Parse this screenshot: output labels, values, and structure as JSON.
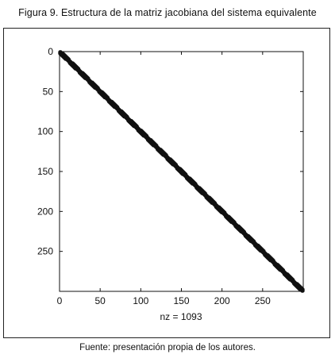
{
  "figure_title": "Figura 9. Estructura de la matriz jacobiana del sistema equivalente",
  "source_note": "Fuente: presentación propia de los autores.",
  "chart_data": {
    "type": "scatter",
    "subtype": "sparsity-pattern",
    "title": "",
    "xlabel": "nz = 1093",
    "ylabel": "",
    "matrix_size": 300,
    "nz": 1093,
    "xlim": [
      0,
      300
    ],
    "ylim": [
      300,
      0
    ],
    "y_axis_inverted": true,
    "x_ticks": [
      "0",
      "50",
      "100",
      "150",
      "200",
      "250"
    ],
    "x_tick_values": [
      0,
      50,
      100,
      150,
      200,
      250
    ],
    "y_ticks": [
      "0",
      "50",
      "100",
      "150",
      "200",
      "250"
    ],
    "y_tick_values": [
      0,
      50,
      100,
      150,
      200,
      250
    ],
    "band_half_width": 3,
    "block_size": 12,
    "marker_color": "#111111",
    "grid": false
  }
}
